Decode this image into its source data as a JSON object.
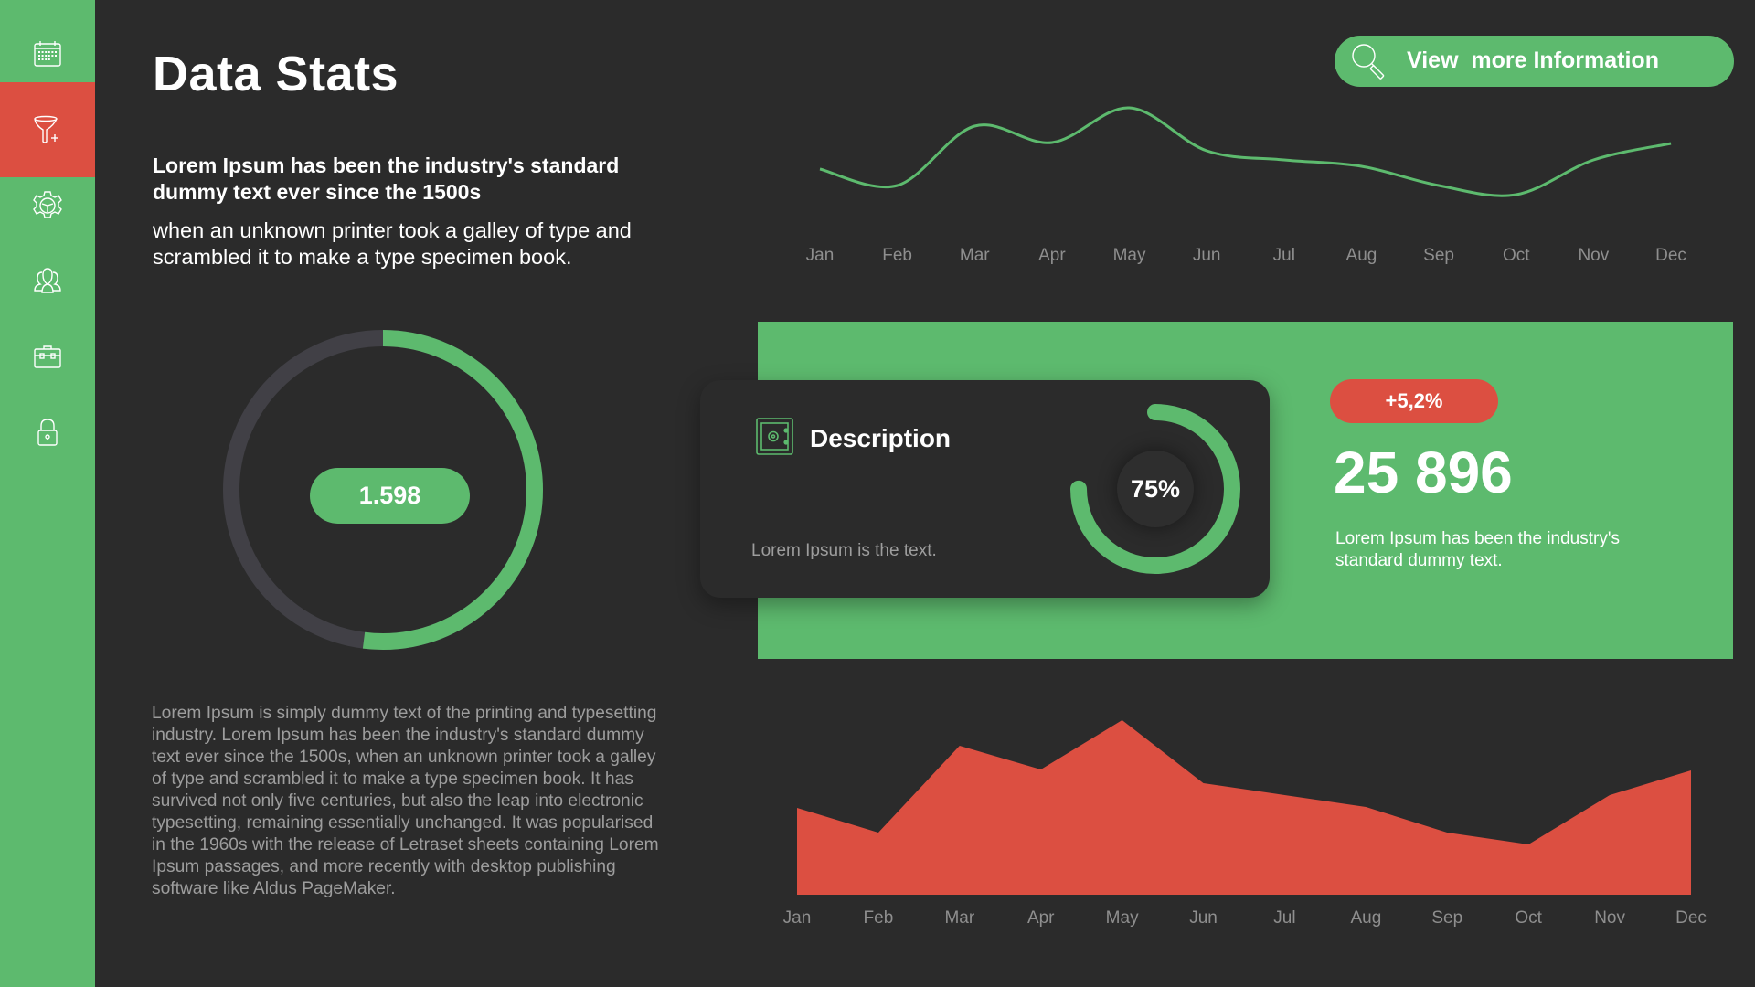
{
  "colors": {
    "background": "#2b2b2b",
    "green": "#5dba6e",
    "red": "#dc4f41",
    "track": "#414046",
    "muted": "#9d9d9d"
  },
  "sidebar": {
    "items": [
      {
        "icon": "calendar-icon",
        "active": false
      },
      {
        "icon": "funnel-plus-icon",
        "active": true
      },
      {
        "icon": "gear-icon",
        "active": false
      },
      {
        "icon": "users-icon",
        "active": false
      },
      {
        "icon": "briefcase-icon",
        "active": false
      },
      {
        "icon": "lock-icon",
        "active": false
      }
    ]
  },
  "header": {
    "title": "Data Stats",
    "button_label": "View  more Information",
    "button_icon": "search-icon"
  },
  "intro": {
    "bold": "Lorem Ipsum has been the industry's standard dummy text ever since the 1500s",
    "regular": "when an unknown printer took a galley of type and scrambled it to make a type specimen book."
  },
  "donut_main": {
    "value_label": "1.598",
    "progress_percent": 52
  },
  "body_paragraph": "Lorem Ipsum is simply dummy text of the printing and typesetting industry. Lorem Ipsum has been the industry's standard dummy text ever since the 1500s, when an unknown printer took a galley of type and scrambled it to make a type specimen book. It has survived not only five centuries, but also the leap into electronic typesetting, remaining essentially unchanged. It was popularised in the 1960s with the release of Letraset sheets containing Lorem Ipsum passages, and more recently with desktop publishing software like Aldus PageMaker.",
  "description_card": {
    "icon": "safe-icon",
    "title": "Description",
    "text": "Lorem Ipsum is the text.",
    "percent_label": "75%",
    "progress_percent": 75
  },
  "stat": {
    "badge": "+5,2%",
    "value": "25 896",
    "text": "Lorem Ipsum has been the industry's standard dummy text."
  },
  "chart_data": [
    {
      "type": "line",
      "smooth": true,
      "color": "#5dba6e",
      "categories": [
        "Jan",
        "Feb",
        "Mar",
        "Apr",
        "May",
        "Jun",
        "Jul",
        "Aug",
        "Sep",
        "Oct",
        "Nov",
        "Dec"
      ],
      "values": [
        45,
        27,
        92,
        74,
        112,
        65,
        55,
        48,
        27,
        17,
        55,
        73
      ],
      "grid": false,
      "y_axis_shown": false
    },
    {
      "type": "area",
      "color": "#dc4f41",
      "categories": [
        "Jan",
        "Feb",
        "Mar",
        "Apr",
        "May",
        "Jun",
        "Jul",
        "Aug",
        "Sep",
        "Oct",
        "Nov",
        "Dec"
      ],
      "values": [
        95,
        68,
        163,
        137,
        191,
        122,
        109,
        96,
        68,
        55,
        109,
        136
      ],
      "grid": false,
      "y_axis_shown": false
    }
  ]
}
